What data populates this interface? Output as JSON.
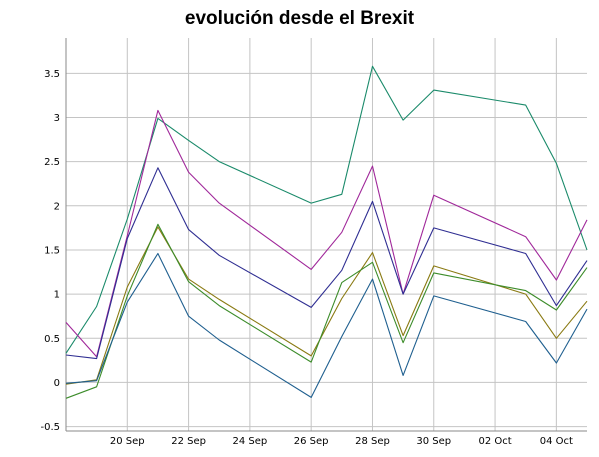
{
  "chart_data": {
    "type": "line",
    "title": "evolución desde el Brexit",
    "xlabel": "",
    "ylabel": "",
    "grid": true,
    "x": [
      "2016-09-18",
      "2016-09-19",
      "2016-09-20",
      "2016-09-21",
      "2016-09-22",
      "2016-09-23",
      "2016-09-26",
      "2016-09-27",
      "2016-09-28",
      "2016-09-29",
      "2016-09-30",
      "2016-10-03",
      "2016-10-04",
      "2016-10-05"
    ],
    "x_tick_labels": [
      "20 Sep",
      "22 Sep",
      "24 Sep",
      "26 Sep",
      "28 Sep",
      "30 Sep",
      "02 Oct",
      "04 Oct"
    ],
    "x_tick_dates": [
      "2016-09-20",
      "2016-09-22",
      "2016-09-24",
      "2016-09-26",
      "2016-09-28",
      "2016-09-30",
      "2016-10-02",
      "2016-10-04"
    ],
    "xlim": [
      "2016-09-18",
      "2016-10-05"
    ],
    "ylim": [
      -0.55,
      3.9
    ],
    "y_ticks": [
      -0.5,
      0,
      0.5,
      1,
      1.5,
      2,
      2.5,
      3,
      3.5
    ],
    "y_tick_labels": [
      "-0.5",
      "0",
      "0.5",
      "1",
      "1.5",
      "2",
      "2.5",
      "3",
      "3.5"
    ],
    "series": [
      {
        "color": "#1a8a6a",
        "values": [
          0.33,
          0.86,
          1.85,
          2.99,
          2.74,
          2.5,
          2.03,
          2.13,
          3.58,
          2.97,
          3.31,
          3.14,
          2.48,
          1.5
        ]
      },
      {
        "color": "#a0289a",
        "values": [
          0.68,
          0.29,
          1.66,
          3.08,
          2.38,
          2.03,
          1.28,
          1.7,
          2.45,
          1.0,
          2.12,
          1.65,
          1.16,
          1.84
        ]
      },
      {
        "color": "#2f2e92",
        "values": [
          0.31,
          0.27,
          1.63,
          2.43,
          1.73,
          1.44,
          0.85,
          1.27,
          2.05,
          1.0,
          1.75,
          1.46,
          0.87,
          1.38
        ]
      },
      {
        "color": "#8a7a12",
        "values": [
          -0.02,
          0.03,
          1.08,
          1.76,
          1.17,
          0.94,
          0.3,
          0.95,
          1.47,
          0.53,
          1.32,
          1.0,
          0.5,
          0.92
        ]
      },
      {
        "color": "#3c8c2a",
        "values": [
          -0.18,
          -0.05,
          0.98,
          1.79,
          1.14,
          0.87,
          0.23,
          1.13,
          1.36,
          0.45,
          1.24,
          1.04,
          0.82,
          1.3
        ]
      },
      {
        "color": "#1f5f8f",
        "values": [
          -0.01,
          0.02,
          0.91,
          1.46,
          0.75,
          0.48,
          -0.17,
          0.52,
          1.17,
          0.08,
          0.98,
          0.69,
          0.22,
          0.83
        ]
      }
    ]
  }
}
